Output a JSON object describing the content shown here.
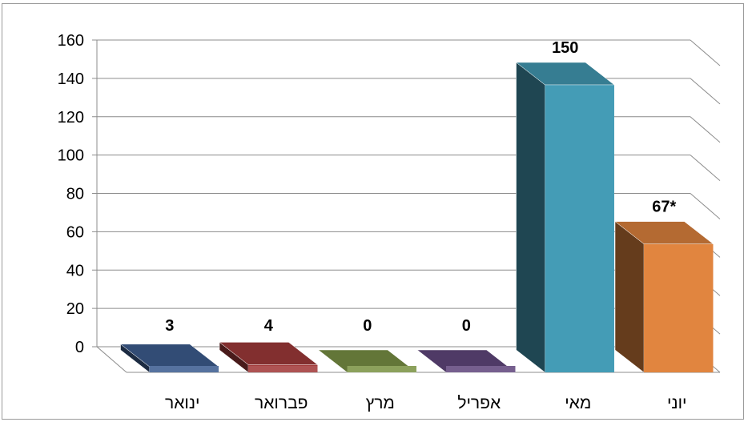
{
  "chart_data": {
    "type": "bar",
    "style": "3d-columns",
    "categories": [
      "ינואר",
      "פברואר",
      "מרץ",
      "אפריל",
      "מאי",
      "יוני"
    ],
    "values": [
      3,
      4,
      0,
      0,
      150,
      67
    ],
    "data_labels": [
      "3",
      "4",
      "0",
      "0",
      "150",
      "67*"
    ],
    "title": "",
    "xlabel": "",
    "ylabel": "",
    "ylim": [
      0,
      160
    ],
    "yticks": [
      0,
      20,
      40,
      60,
      80,
      100,
      120,
      140,
      160
    ],
    "grid": true,
    "legend": "none",
    "colors": [
      "#3f5f92",
      "#a33b3b",
      "#7c9446",
      "#63497f",
      "#449cb6",
      "#e1853f"
    ]
  }
}
